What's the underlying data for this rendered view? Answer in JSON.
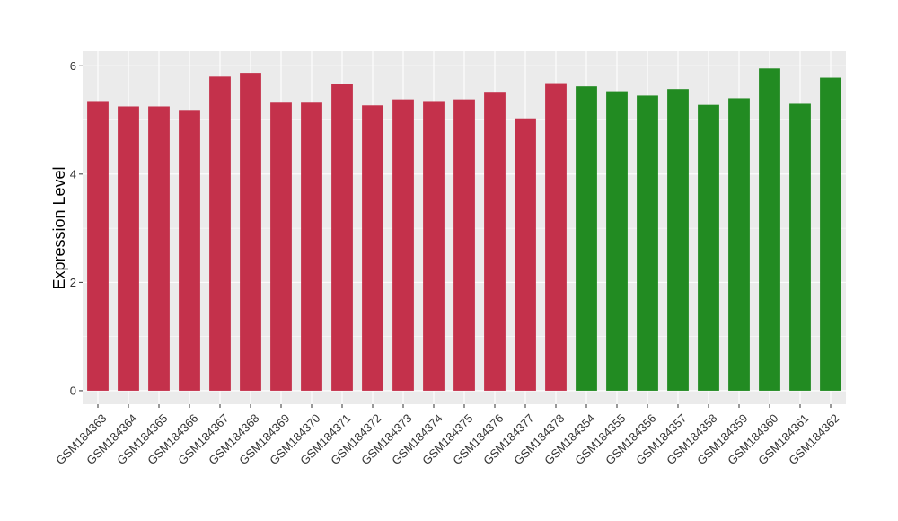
{
  "chart_data": {
    "type": "bar",
    "ylabel": "Expression Level",
    "xlabel": "",
    "ylim": [
      -0.25,
      6.27
    ],
    "yticks": [
      0,
      2,
      4,
      6
    ],
    "grid": true,
    "panel_background": "#EBEBEB",
    "categories": [
      "GSM184363",
      "GSM184364",
      "GSM184365",
      "GSM184366",
      "GSM184367",
      "GSM184368",
      "GSM184369",
      "GSM184370",
      "GSM184371",
      "GSM184372",
      "GSM184373",
      "GSM184374",
      "GSM184375",
      "GSM184376",
      "GSM184377",
      "GSM184378",
      "GSM184354",
      "GSM184355",
      "GSM184356",
      "GSM184357",
      "GSM184358",
      "GSM184359",
      "GSM184360",
      "GSM184361",
      "GSM184362"
    ],
    "values": [
      5.35,
      5.25,
      5.25,
      5.17,
      5.8,
      5.87,
      5.32,
      5.32,
      5.67,
      5.27,
      5.38,
      5.35,
      5.38,
      5.52,
      5.03,
      5.68,
      5.62,
      5.53,
      5.45,
      5.57,
      5.28,
      5.4,
      5.95,
      5.3,
      5.78
    ],
    "colors": [
      "#C4314B",
      "#C4314B",
      "#C4314B",
      "#C4314B",
      "#C4314B",
      "#C4314B",
      "#C4314B",
      "#C4314B",
      "#C4314B",
      "#C4314B",
      "#C4314B",
      "#C4314B",
      "#C4314B",
      "#C4314B",
      "#C4314B",
      "#C4314B",
      "#228B22",
      "#228B22",
      "#228B22",
      "#228B22",
      "#228B22",
      "#228B22",
      "#228B22",
      "#228B22",
      "#228B22"
    ]
  }
}
